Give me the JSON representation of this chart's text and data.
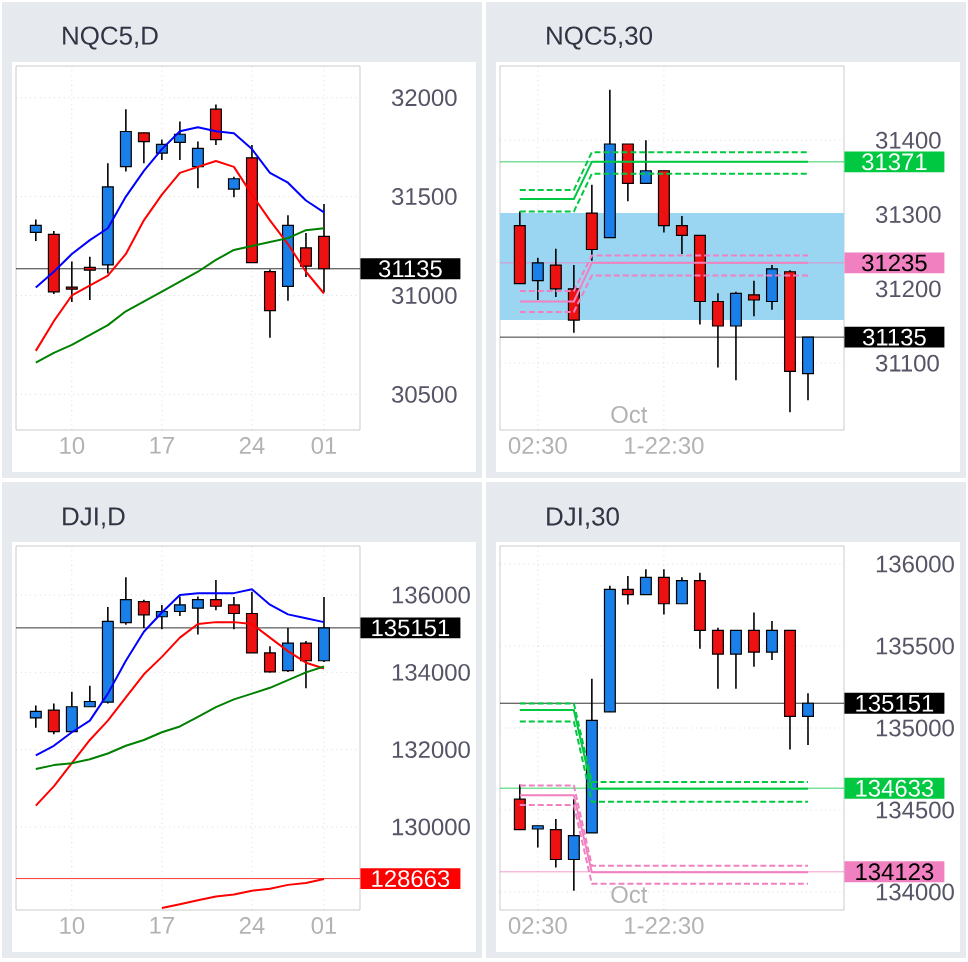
{
  "chart_data": [
    {
      "type": "candlestick",
      "title": "NQC5,D",
      "categories": [
        null,
        null,
        "10",
        null,
        null,
        null,
        null,
        "17",
        null,
        null,
        null,
        null,
        "24",
        null,
        null,
        null,
        "01"
      ],
      "ohlc": [
        [
          31319,
          31384,
          31275,
          31354
        ],
        [
          31309,
          31326,
          31008,
          31018
        ],
        [
          31042,
          31172,
          30967,
          31032
        ],
        [
          31142,
          31196,
          30977,
          31128
        ],
        [
          31155,
          31668,
          31111,
          31549
        ],
        [
          31651,
          31942,
          31627,
          31829
        ],
        [
          31822,
          31822,
          31668,
          31778
        ],
        [
          31720,
          31788,
          31685,
          31764
        ],
        [
          31774,
          31880,
          31685,
          31815
        ],
        [
          31651,
          31778,
          31542,
          31744
        ],
        [
          31942,
          31966,
          31761,
          31788
        ],
        [
          31538,
          31600,
          31497,
          31590
        ],
        [
          31696,
          31761,
          31166,
          31166
        ],
        [
          31121,
          31131,
          30786,
          30923
        ],
        [
          31046,
          31405,
          30974,
          31354
        ],
        [
          31241,
          31316,
          31094,
          31148
        ],
        [
          31299,
          31463,
          31018,
          31135
        ]
      ],
      "series": [
        {
          "type": "line",
          "color": "#0000ff",
          "values": [
            31040,
            31120,
            31210,
            31280,
            31340,
            31500,
            31630,
            31740,
            31830,
            31850,
            31830,
            31820,
            31740,
            31620,
            31570,
            31480,
            31420
          ]
        },
        {
          "type": "line",
          "color": "#ff0000",
          "values": [
            30720,
            30870,
            31000,
            31050,
            31100,
            31210,
            31380,
            31510,
            31620,
            31650,
            31680,
            31650,
            31510,
            31380,
            31260,
            31120,
            31010
          ]
        },
        {
          "type": "line",
          "color": "#008000",
          "values": [
            30660,
            30710,
            30750,
            30800,
            30850,
            30920,
            30970,
            31020,
            31070,
            31120,
            31180,
            31230,
            31250,
            31270,
            31290,
            31330,
            31340
          ]
        }
      ],
      "ylim": [
        30320,
        32160
      ],
      "yticks": [
        30500,
        31000,
        31500,
        32000
      ],
      "grid": true,
      "ref_lines": [
        {
          "axis": "y",
          "value": 31135,
          "label": "31135",
          "color": "#000000"
        }
      ]
    },
    {
      "type": "candlestick",
      "title": "NQC5,30",
      "categories": [
        null,
        "02:30",
        null,
        null,
        null,
        null,
        null,
        null,
        "1-22:30",
        null,
        null,
        null,
        null,
        null,
        null,
        null,
        null
      ],
      "ohlc": [
        [
          31285,
          31304,
          31207,
          31207
        ],
        [
          31211,
          31242,
          31185,
          31235
        ],
        [
          31232,
          31254,
          31189,
          31200
        ],
        [
          31200,
          31232,
          31141,
          31158
        ],
        [
          31302,
          31340,
          31238,
          31253
        ],
        [
          31269,
          31468,
          31269,
          31395
        ],
        [
          31395,
          31395,
          31318,
          31342
        ],
        [
          31342,
          31400,
          31342,
          31359
        ],
        [
          31359,
          31359,
          31276,
          31285
        ],
        [
          31285,
          31298,
          31247,
          31272
        ],
        [
          31272,
          31272,
          31152,
          31183
        ],
        [
          31183,
          31194,
          31094,
          31150
        ],
        [
          31150,
          31196,
          31077,
          31194
        ],
        [
          31192,
          31211,
          31163,
          31185
        ],
        [
          31183,
          31232,
          31172,
          31227
        ],
        [
          31223,
          31225,
          31034,
          31089
        ],
        [
          31086,
          31135,
          31050,
          31135
        ]
      ],
      "series": [
        {
          "type": "line",
          "color": "#00c840",
          "values": [
            31321,
            31321,
            31321,
            31321,
            31371,
            31371,
            31371,
            31371,
            31371,
            31371,
            31371,
            31371,
            31371,
            31371,
            31371,
            31371,
            31371
          ]
        },
        {
          "type": "line",
          "color": "#00c840",
          "line_style": "dashed",
          "values": [
            31333,
            31333,
            31333,
            31333,
            31384,
            31384,
            31384,
            31384,
            31384,
            31384,
            31384,
            31384,
            31384,
            31384,
            31384,
            31384,
            31384
          ]
        },
        {
          "type": "line",
          "color": "#00c840",
          "line_style": "dashed",
          "values": [
            31304,
            31304,
            31304,
            31304,
            31355,
            31355,
            31355,
            31355,
            31355,
            31355,
            31355,
            31355,
            31355,
            31355,
            31355,
            31355,
            31355
          ]
        },
        {
          "type": "line",
          "color": "#f080c0",
          "values": [
            31183,
            31183,
            31183,
            31183,
            31235,
            31235,
            31235,
            31235,
            31235,
            31235,
            31235,
            31235,
            31235,
            31235,
            31235,
            31235,
            31235
          ]
        },
        {
          "type": "line",
          "color": "#f080c0",
          "line_style": "dashed",
          "values": [
            31197,
            31197,
            31197,
            31197,
            31245,
            31245,
            31245,
            31245,
            31245,
            31245,
            31245,
            31245,
            31245,
            31245,
            31245,
            31245,
            31245
          ]
        },
        {
          "type": "line",
          "color": "#f080c0",
          "line_style": "dashed",
          "values": [
            31169,
            31169,
            31169,
            31169,
            31218,
            31218,
            31218,
            31218,
            31218,
            31218,
            31218,
            31218,
            31218,
            31218,
            31218,
            31218,
            31218
          ]
        }
      ],
      "bands": [
        {
          "axis": "y",
          "from": 31158,
          "to": 31302,
          "color": "#9ad6f2"
        }
      ],
      "ylim": [
        31010,
        31500
      ],
      "yticks": [
        31100,
        31200,
        31300,
        31400
      ],
      "grid": true,
      "ref_lines": [
        {
          "axis": "y",
          "value": 31371,
          "label": "31371",
          "color": "#00c840"
        },
        {
          "axis": "y",
          "value": 31235,
          "label": "31235",
          "color": "#f080c0"
        },
        {
          "axis": "y",
          "value": 31135,
          "label": "31135",
          "color": "#000000"
        }
      ],
      "annotations": [
        "Oct"
      ]
    },
    {
      "type": "candlestick",
      "title": "DJI,D",
      "categories": [
        null,
        null,
        "10",
        null,
        null,
        null,
        null,
        "17",
        null,
        null,
        null,
        null,
        "24",
        null,
        null,
        null,
        "01"
      ],
      "ohlc": [
        [
          132821,
          133144,
          132566,
          132991
        ],
        [
          133025,
          133195,
          132396,
          132464
        ],
        [
          132464,
          133501,
          132464,
          133110
        ],
        [
          133110,
          133654,
          133110,
          133246
        ],
        [
          133229,
          135694,
          133195,
          135320
        ],
        [
          135286,
          136459,
          135235,
          135881
        ],
        [
          135830,
          135881,
          135150,
          135490
        ],
        [
          135439,
          135745,
          135116,
          135575
        ],
        [
          135575,
          135966,
          135456,
          135745
        ],
        [
          135660,
          135966,
          134980,
          135881
        ],
        [
          135881,
          136391,
          135609,
          135711
        ],
        [
          135745,
          135949,
          135116,
          135524
        ],
        [
          135524,
          136085,
          134504,
          134504
        ],
        [
          134504,
          134674,
          133994,
          134011
        ],
        [
          134045,
          135150,
          134011,
          134759
        ],
        [
          134759,
          134810,
          133586,
          134300
        ],
        [
          134300,
          135949,
          134266,
          135151
        ]
      ],
      "series": [
        {
          "type": "line",
          "color": "#0000ff",
          "values": [
            131850,
            132100,
            132450,
            132750,
            133450,
            134300,
            135050,
            135550,
            136000,
            136050,
            136050,
            136050,
            136150,
            135750,
            135500,
            135400,
            135300
          ]
        },
        {
          "type": "line",
          "color": "#ff0000",
          "values": [
            130550,
            131050,
            131650,
            132250,
            132750,
            133350,
            133950,
            134400,
            134900,
            135250,
            135300,
            135300,
            135250,
            134900,
            134550,
            134250,
            134100
          ]
        },
        {
          "type": "line",
          "color": "#008000",
          "values": [
            131500,
            131600,
            131650,
            131750,
            131900,
            132100,
            132250,
            132450,
            132600,
            132850,
            133100,
            133300,
            133450,
            133600,
            133800,
            134000,
            134150
          ]
        },
        {
          "type": "line",
          "color": "#ff0000",
          "values": [
            null,
            null,
            null,
            null,
            null,
            null,
            null,
            127900,
            128000,
            128100,
            128200,
            128250,
            128350,
            128400,
            128500,
            128550,
            128650
          ]
        }
      ],
      "ylim": [
        127850,
        137270
      ],
      "yticks": [
        130000,
        132000,
        134000,
        136000
      ],
      "grid": true,
      "ref_lines": [
        {
          "axis": "y",
          "value": 135151,
          "label": "135151",
          "color": "#000000"
        },
        {
          "axis": "y",
          "value": 128663,
          "label": "128663",
          "color": "#ff0000"
        }
      ]
    },
    {
      "type": "candlestick",
      "title": "DJI,30",
      "categories": [
        null,
        "02:30",
        null,
        null,
        null,
        null,
        null,
        null,
        "1-22:30",
        null,
        null,
        null,
        null,
        null,
        null,
        null,
        null
      ],
      "ohlc": [
        [
          134566,
          134655,
          134380,
          134380
        ],
        [
          134384,
          134404,
          134271,
          134404
        ],
        [
          134380,
          134445,
          134150,
          134198
        ],
        [
          134198,
          134566,
          134008,
          134344
        ],
        [
          134360,
          135301,
          134360,
          135047
        ],
        [
          135099,
          135867,
          135099,
          135846
        ],
        [
          135846,
          135927,
          135754,
          135814
        ],
        [
          135814,
          135968,
          135814,
          135919
        ],
        [
          135919,
          135968,
          135693,
          135758
        ],
        [
          135758,
          135919,
          135758,
          135899
        ],
        [
          135899,
          135947,
          135483,
          135596
        ],
        [
          135596,
          135612,
          135240,
          135451
        ],
        [
          135451,
          135596,
          135240,
          135596
        ],
        [
          135596,
          135705,
          135374,
          135463
        ],
        [
          135463,
          135653,
          135414,
          135596
        ],
        [
          135596,
          135596,
          134869,
          135071
        ],
        [
          135071,
          135212,
          134897,
          135151
        ]
      ],
      "series": [
        {
          "type": "line",
          "color": "#00c840",
          "values": [
            135110,
            135110,
            135110,
            135110,
            134630,
            134630,
            134630,
            134630,
            134630,
            134630,
            134630,
            134630,
            134630,
            134630,
            134630,
            134630,
            134630
          ]
        },
        {
          "type": "line",
          "color": "#00c840",
          "line_style": "dashed",
          "values": [
            135150,
            135150,
            135150,
            135150,
            134670,
            134670,
            134670,
            134670,
            134670,
            134670,
            134670,
            134670,
            134670,
            134670,
            134670,
            134670,
            134670
          ]
        },
        {
          "type": "line",
          "color": "#00c840",
          "line_style": "dashed",
          "values": [
            135040,
            135040,
            135040,
            135040,
            134550,
            134550,
            134550,
            134550,
            134550,
            134550,
            134550,
            134550,
            134550,
            134550,
            134550,
            134550,
            134550
          ]
        },
        {
          "type": "line",
          "color": "#f080c0",
          "values": [
            134590,
            134590,
            134590,
            134590,
            134120,
            134120,
            134120,
            134120,
            134120,
            134120,
            134120,
            134120,
            134120,
            134120,
            134120,
            134120,
            134120
          ]
        },
        {
          "type": "line",
          "color": "#f080c0",
          "line_style": "dashed",
          "values": [
            134650,
            134650,
            134650,
            134650,
            134160,
            134160,
            134160,
            134160,
            134160,
            134160,
            134160,
            134160,
            134160,
            134160,
            134160,
            134160,
            134160
          ]
        },
        {
          "type": "line",
          "color": "#f080c0",
          "line_style": "dashed",
          "values": [
            134530,
            134530,
            134530,
            134530,
            134050,
            134050,
            134050,
            134050,
            134050,
            134050,
            134050,
            134050,
            134050,
            134050,
            134050,
            134050,
            134050
          ]
        }
      ],
      "ylim": [
        133890,
        136110
      ],
      "yticks": [
        134000,
        134500,
        135000,
        135500,
        136000
      ],
      "grid": true,
      "ref_lines": [
        {
          "axis": "y",
          "value": 135151,
          "label": "135151",
          "color": "#000000"
        },
        {
          "axis": "y",
          "value": 134633,
          "label": "134633",
          "color": "#00c840"
        },
        {
          "axis": "y",
          "value": 134123,
          "label": "134123",
          "color": "#f080c0"
        }
      ],
      "annotations": [
        "Oct"
      ]
    }
  ]
}
